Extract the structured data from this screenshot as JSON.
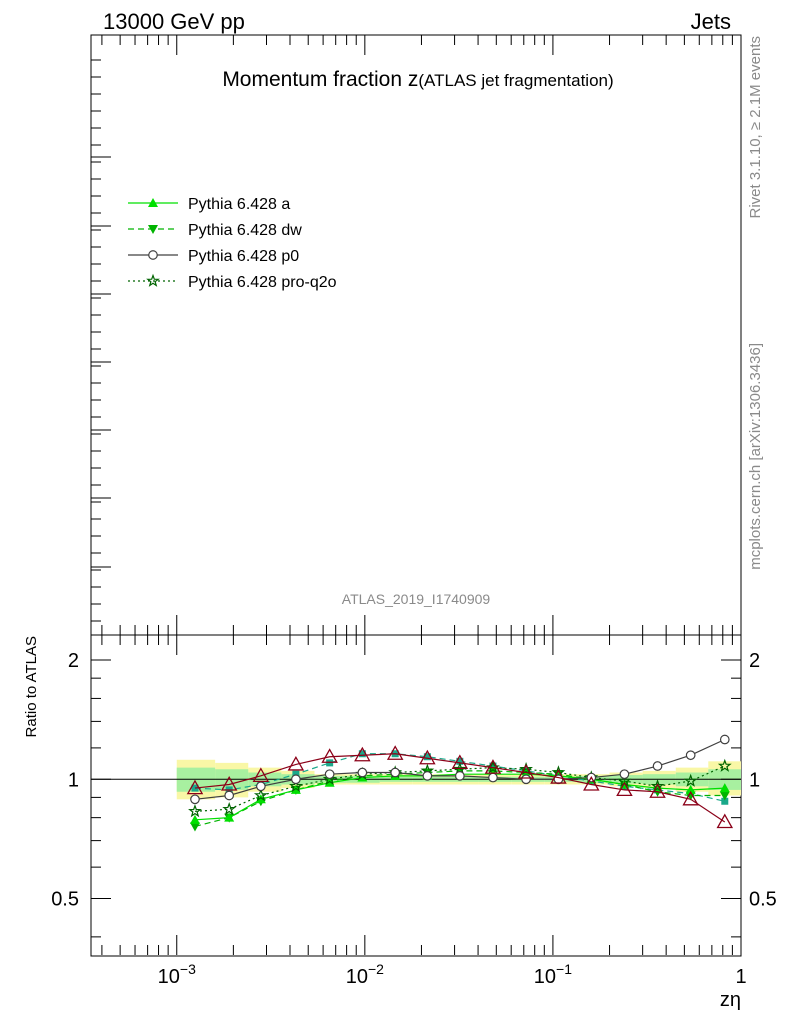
{
  "header": {
    "left": "13000 GeV pp",
    "right": "Jets"
  },
  "title": {
    "main": "Momentum fraction z",
    "sub": "(ATLAS jet fragmentation)"
  },
  "watermark": "ATLAS_2019_I1740909",
  "side_labels": {
    "rivet": "Rivet 3.1.10, ≥ 2.1M events",
    "mcplots": "mcplots.cern.ch [arXiv:1306.3436]"
  },
  "legend": {
    "placement": "top-left",
    "entries": [
      {
        "label": "Pythia 6.428 a",
        "color": "#00e000",
        "marker": "triangle-up",
        "line": "solid"
      },
      {
        "label": "Pythia 6.428 dw",
        "color": "#00b400",
        "marker": "triangle-down",
        "line": "dashed"
      },
      {
        "label": "Pythia 6.428 p0",
        "color": "#404040",
        "marker": "circle-open",
        "line": "solid"
      },
      {
        "label": "Pythia 6.428 pro-q2o",
        "color": "#006400",
        "marker": "star",
        "line": "dotted"
      }
    ]
  },
  "chart_data": {
    "type": "line",
    "ylabel": "Ratio to ATLAS",
    "xlabel": "zη",
    "xscale": "log",
    "yscale": "log",
    "xlim": [
      0.00035,
      1.0
    ],
    "ylim": [
      0.36,
      2.3
    ],
    "x_tick_labels": [
      "10^-3",
      "10^-2",
      "10^-1",
      "1"
    ],
    "y_tick_labels": [
      "0.5",
      "1",
      "2"
    ],
    "x": [
      0.00125,
      0.0019,
      0.0028,
      0.0043,
      0.0065,
      0.0097,
      0.0145,
      0.0215,
      0.032,
      0.048,
      0.072,
      0.107,
      0.16,
      0.24,
      0.36,
      0.54,
      0.82
    ],
    "band_x_edges": [
      0.001,
      0.0016,
      0.0024,
      0.0036,
      0.0054,
      0.008,
      0.012,
      0.018,
      0.027,
      0.04,
      0.06,
      0.09,
      0.135,
      0.2,
      0.3,
      0.45,
      0.67,
      1.0
    ],
    "band_outer": [
      [
        0.89,
        1.12
      ],
      [
        0.9,
        1.1
      ],
      [
        0.93,
        1.07
      ],
      [
        0.95,
        1.05
      ],
      [
        0.97,
        1.03
      ],
      [
        0.97,
        1.03
      ],
      [
        0.97,
        1.03
      ],
      [
        0.97,
        1.03
      ],
      [
        0.97,
        1.03
      ],
      [
        0.97,
        1.03
      ],
      [
        0.97,
        1.03
      ],
      [
        0.97,
        1.03
      ],
      [
        0.97,
        1.03
      ],
      [
        0.96,
        1.04
      ],
      [
        0.95,
        1.05
      ],
      [
        0.93,
        1.07
      ],
      [
        0.91,
        1.11
      ]
    ],
    "band_inner": [
      [
        0.93,
        1.07
      ],
      [
        0.94,
        1.06
      ],
      [
        0.96,
        1.04
      ],
      [
        0.97,
        1.03
      ],
      [
        0.98,
        1.02
      ],
      [
        0.98,
        1.02
      ],
      [
        0.985,
        1.015
      ],
      [
        0.985,
        1.015
      ],
      [
        0.985,
        1.015
      ],
      [
        0.985,
        1.015
      ],
      [
        0.985,
        1.015
      ],
      [
        0.985,
        1.015
      ],
      [
        0.98,
        1.02
      ],
      [
        0.975,
        1.025
      ],
      [
        0.97,
        1.03
      ],
      [
        0.96,
        1.04
      ],
      [
        0.94,
        1.06
      ]
    ],
    "series": [
      {
        "name": "Pythia 6.428 a",
        "values": [
          0.79,
          0.8,
          0.89,
          0.94,
          0.98,
          1.01,
          1.02,
          1.02,
          1.03,
          1.03,
          1.03,
          1.02,
          1.0,
          0.97,
          0.95,
          0.94,
          0.95
        ],
        "color": "#00e000"
      },
      {
        "name": "Pythia 6.428 dw",
        "values": [
          0.76,
          0.8,
          0.88,
          0.94,
          0.99,
          1.02,
          1.03,
          1.04,
          1.05,
          1.05,
          1.04,
          1.03,
          1.0,
          0.97,
          0.93,
          0.91,
          0.91
        ],
        "color": "#00b400"
      },
      {
        "name": "Pythia 6.428 p0",
        "values": [
          0.89,
          0.91,
          0.96,
          1.0,
          1.03,
          1.04,
          1.04,
          1.02,
          1.02,
          1.01,
          1.0,
          1.0,
          1.01,
          1.03,
          1.08,
          1.15,
          1.26
        ],
        "color": "#404040"
      },
      {
        "name": "Pythia 6.428 pro-q2o",
        "values": [
          0.83,
          0.84,
          0.91,
          0.96,
          1.0,
          1.03,
          1.04,
          1.05,
          1.06,
          1.07,
          1.06,
          1.04,
          1.01,
          0.99,
          0.96,
          0.99,
          1.08
        ],
        "color": "#006400"
      },
      {
        "values": [
          0.95,
          0.97,
          1.02,
          1.09,
          1.14,
          1.15,
          1.16,
          1.13,
          1.1,
          1.07,
          1.04,
          1.01,
          0.97,
          0.94,
          0.93,
          0.89,
          0.78
        ],
        "color": "#8b0018"
      },
      {
        "values": [
          0.95,
          0.94,
          0.97,
          1.03,
          1.1,
          1.16,
          1.16,
          1.14,
          1.11,
          1.08,
          1.05,
          1.02,
          0.99,
          0.96,
          0.94,
          0.92,
          0.88
        ],
        "color": "#1aa88a"
      }
    ]
  }
}
